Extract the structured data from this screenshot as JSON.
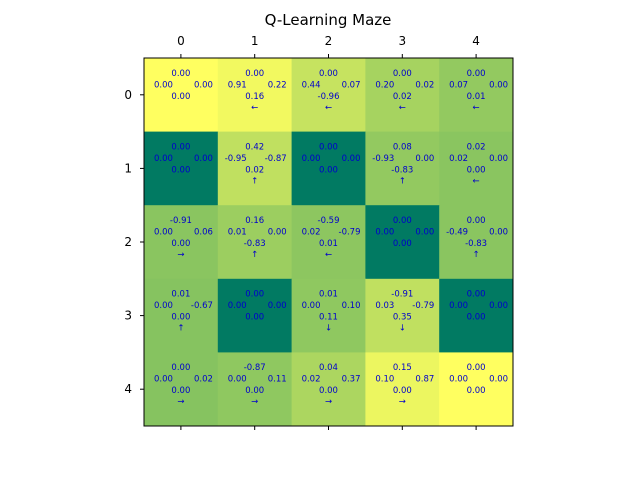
{
  "chart_data": {
    "type": "heatmap",
    "title": "Q-Learning Maze",
    "x_ticks": [
      "0",
      "1",
      "2",
      "3",
      "4"
    ],
    "y_ticks": [
      "0",
      "1",
      "2",
      "3",
      "4"
    ],
    "colors": {
      "wall": "#017a62",
      "text": "#0000cc",
      "scale": [
        "#80c060",
        "#ffff60"
      ]
    },
    "cells": [
      [
        {
          "up": "0.00",
          "left": "0.00",
          "right": "0.00",
          "down": "0.00",
          "arrow": "",
          "wall": false,
          "level": 1.0
        },
        {
          "up": "0.00",
          "left": "0.91",
          "right": "0.22",
          "down": "0.16",
          "arrow": "←",
          "wall": false,
          "level": 0.9
        },
        {
          "up": "0.00",
          "left": "0.44",
          "right": "0.07",
          "down": "-0.96",
          "arrow": "←",
          "wall": false,
          "level": 0.55
        },
        {
          "up": "0.00",
          "left": "0.20",
          "right": "0.02",
          "down": "0.02",
          "arrow": "←",
          "wall": false,
          "level": 0.3
        },
        {
          "up": "0.00",
          "left": "0.07",
          "right": "0.00",
          "down": "0.01",
          "arrow": "←",
          "wall": false,
          "level": 0.15
        }
      ],
      [
        {
          "up": "0.00",
          "left": "0.00",
          "right": "0.00",
          "down": "0.00",
          "arrow": "",
          "wall": true,
          "level": 0
        },
        {
          "up": "0.42",
          "left": "-0.95",
          "right": "-0.87",
          "down": "0.02",
          "arrow": "↑",
          "wall": false,
          "level": 0.5
        },
        {
          "up": "0.00",
          "left": "0.00",
          "right": "0.00",
          "down": "0.00",
          "arrow": "",
          "wall": true,
          "level": 0
        },
        {
          "up": "0.08",
          "left": "-0.93",
          "right": "0.00",
          "down": "-0.83",
          "arrow": "↑",
          "wall": false,
          "level": 0.15
        },
        {
          "up": "0.02",
          "left": "0.02",
          "right": "0.00",
          "down": "0.00",
          "arrow": "←",
          "wall": false,
          "level": 0.08
        }
      ],
      [
        {
          "up": "-0.91",
          "left": "0.00",
          "right": "0.06",
          "down": "0.00",
          "arrow": "→",
          "wall": false,
          "level": 0.08
        },
        {
          "up": "0.16",
          "left": "0.01",
          "right": "0.00",
          "down": "-0.83",
          "arrow": "↑",
          "wall": false,
          "level": 0.22
        },
        {
          "up": "-0.59",
          "left": "0.02",
          "right": "-0.79",
          "down": "0.01",
          "arrow": "←",
          "wall": false,
          "level": 0.1
        },
        {
          "up": "0.00",
          "left": "0.00",
          "right": "0.00",
          "down": "0.00",
          "arrow": "",
          "wall": true,
          "level": 0
        },
        {
          "up": "0.00",
          "left": "-0.49",
          "right": "0.00",
          "down": "-0.83",
          "arrow": "↑",
          "wall": false,
          "level": 0.08
        }
      ],
      [
        {
          "up": "0.01",
          "left": "0.00",
          "right": "-0.67",
          "down": "0.00",
          "arrow": "↑",
          "wall": false,
          "level": 0.05
        },
        {
          "up": "0.00",
          "left": "0.00",
          "right": "0.00",
          "down": "0.00",
          "arrow": "",
          "wall": true,
          "level": 0
        },
        {
          "up": "0.01",
          "left": "0.00",
          "right": "0.10",
          "down": "0.11",
          "arrow": "↓",
          "wall": false,
          "level": 0.12
        },
        {
          "up": "-0.91",
          "left": "0.03",
          "right": "-0.79",
          "down": "0.35",
          "arrow": "↓",
          "wall": false,
          "level": 0.5
        },
        {
          "up": "0.00",
          "left": "0.00",
          "right": "0.00",
          "down": "0.00",
          "arrow": "",
          "wall": true,
          "level": 0
        }
      ],
      [
        {
          "up": "0.00",
          "left": "0.00",
          "right": "0.02",
          "down": "0.00",
          "arrow": "→",
          "wall": false,
          "level": 0.05
        },
        {
          "up": "-0.87",
          "left": "0.00",
          "right": "0.11",
          "down": "0.00",
          "arrow": "→",
          "wall": false,
          "level": 0.12
        },
        {
          "up": "0.04",
          "left": "0.02",
          "right": "0.37",
          "down": "0.00",
          "arrow": "→",
          "wall": false,
          "level": 0.35
        },
        {
          "up": "0.15",
          "left": "0.10",
          "right": "0.87",
          "down": "0.00",
          "arrow": "→",
          "wall": false,
          "level": 0.85
        },
        {
          "up": "0.00",
          "left": "0.00",
          "right": "0.00",
          "down": "0.00",
          "arrow": "",
          "wall": false,
          "level": 1.0
        }
      ]
    ]
  }
}
